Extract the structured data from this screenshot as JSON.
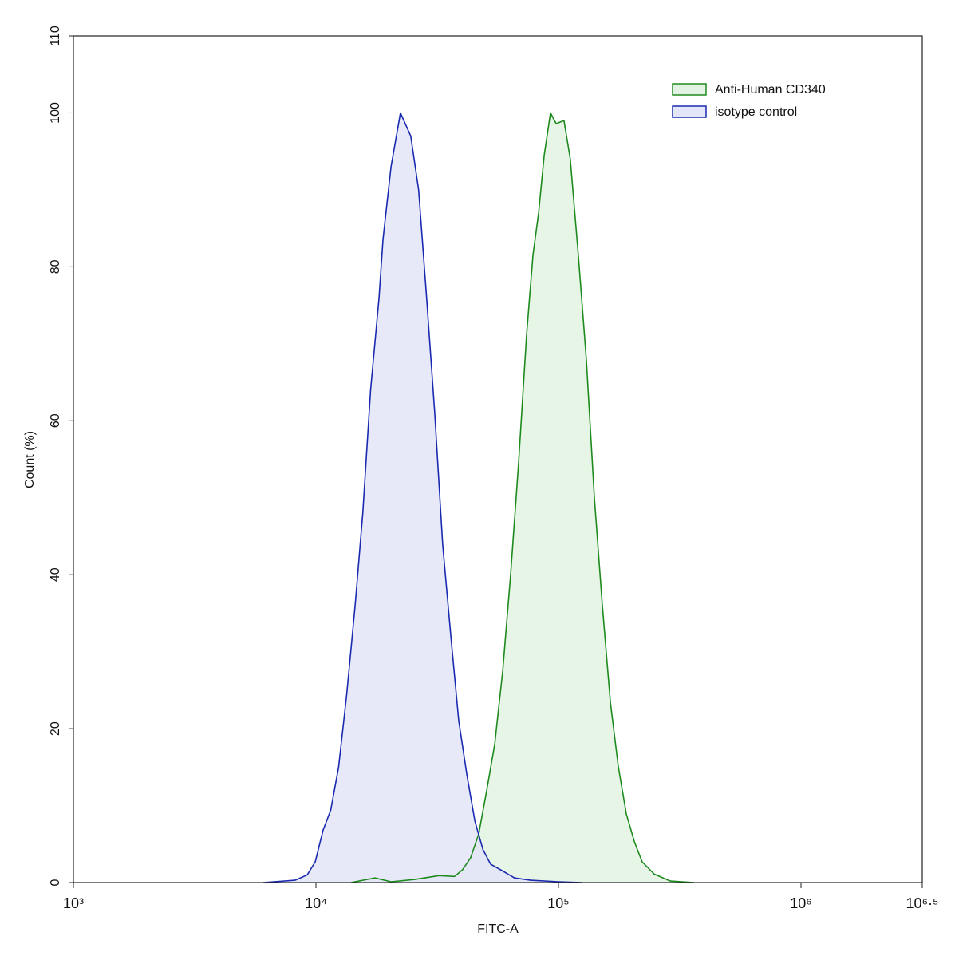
{
  "chart_data": {
    "type": "histogram-overlay",
    "x_label": "FITC-A",
    "y_label": "Count  (%)",
    "xscale": "log",
    "xlim": [
      1000,
      3162278
    ],
    "ylim": [
      0,
      110
    ],
    "xticks": [
      {
        "value": 1000,
        "label": "10³"
      },
      {
        "value": 10000,
        "label": "10⁴"
      },
      {
        "value": 100000,
        "label": "10⁵"
      },
      {
        "value": 1000000,
        "label": "10⁶"
      },
      {
        "value": 3162278,
        "label": "10⁶·⁵"
      }
    ],
    "yticks": [
      0,
      20,
      40,
      60,
      80,
      100,
      110
    ],
    "legend": "top-right",
    "series": [
      {
        "name": "Anti-Human CD340",
        "color": "#1e8a1e",
        "fill": "#e3f3e3",
        "x": [
          13960,
          17500,
          20400,
          25600,
          32100,
          37300,
          40300,
          43400,
          46900,
          50600,
          54600,
          58900,
          63500,
          68500,
          73800,
          78500,
          82800,
          87300,
          92700,
          97800,
          105400,
          111900,
          120800,
          130300,
          140600,
          151700,
          163700,
          176600,
          190500,
          205600,
          221300,
          248300,
          289100,
          362200
        ],
        "values": [
          0,
          0.6,
          0.1,
          0.4,
          0.9,
          0.8,
          1.7,
          3.2,
          6.3,
          12,
          18,
          27.5,
          40,
          54.5,
          71,
          81.5,
          87,
          94.5,
          100,
          98.6,
          99,
          94,
          81.5,
          68,
          50,
          36,
          23.4,
          15,
          8.9,
          5.3,
          2.7,
          1.1,
          0.2,
          0
        ]
      },
      {
        "name": "isotype control",
        "color": "#1a2ab0",
        "fill": "#e3e5f8",
        "x": [
          6070,
          8200,
          9200,
          9930,
          10700,
          11500,
          12400,
          13400,
          14500,
          15600,
          16800,
          18200,
          18900,
          20400,
          22300,
          24600,
          26500,
          28600,
          30900,
          33300,
          36000,
          38800,
          41900,
          45200,
          48800,
          52500,
          58900,
          65900,
          76700,
          100000,
          125600
        ],
        "values": [
          0,
          0.3,
          1,
          2.7,
          6.8,
          9.4,
          15,
          24.5,
          36,
          48,
          64,
          76,
          83.5,
          93,
          100,
          97,
          90,
          76,
          61,
          44,
          32,
          21,
          14,
          8,
          4.3,
          2.4,
          1.5,
          0.6,
          0.3,
          0.1,
          0
        ]
      }
    ]
  }
}
